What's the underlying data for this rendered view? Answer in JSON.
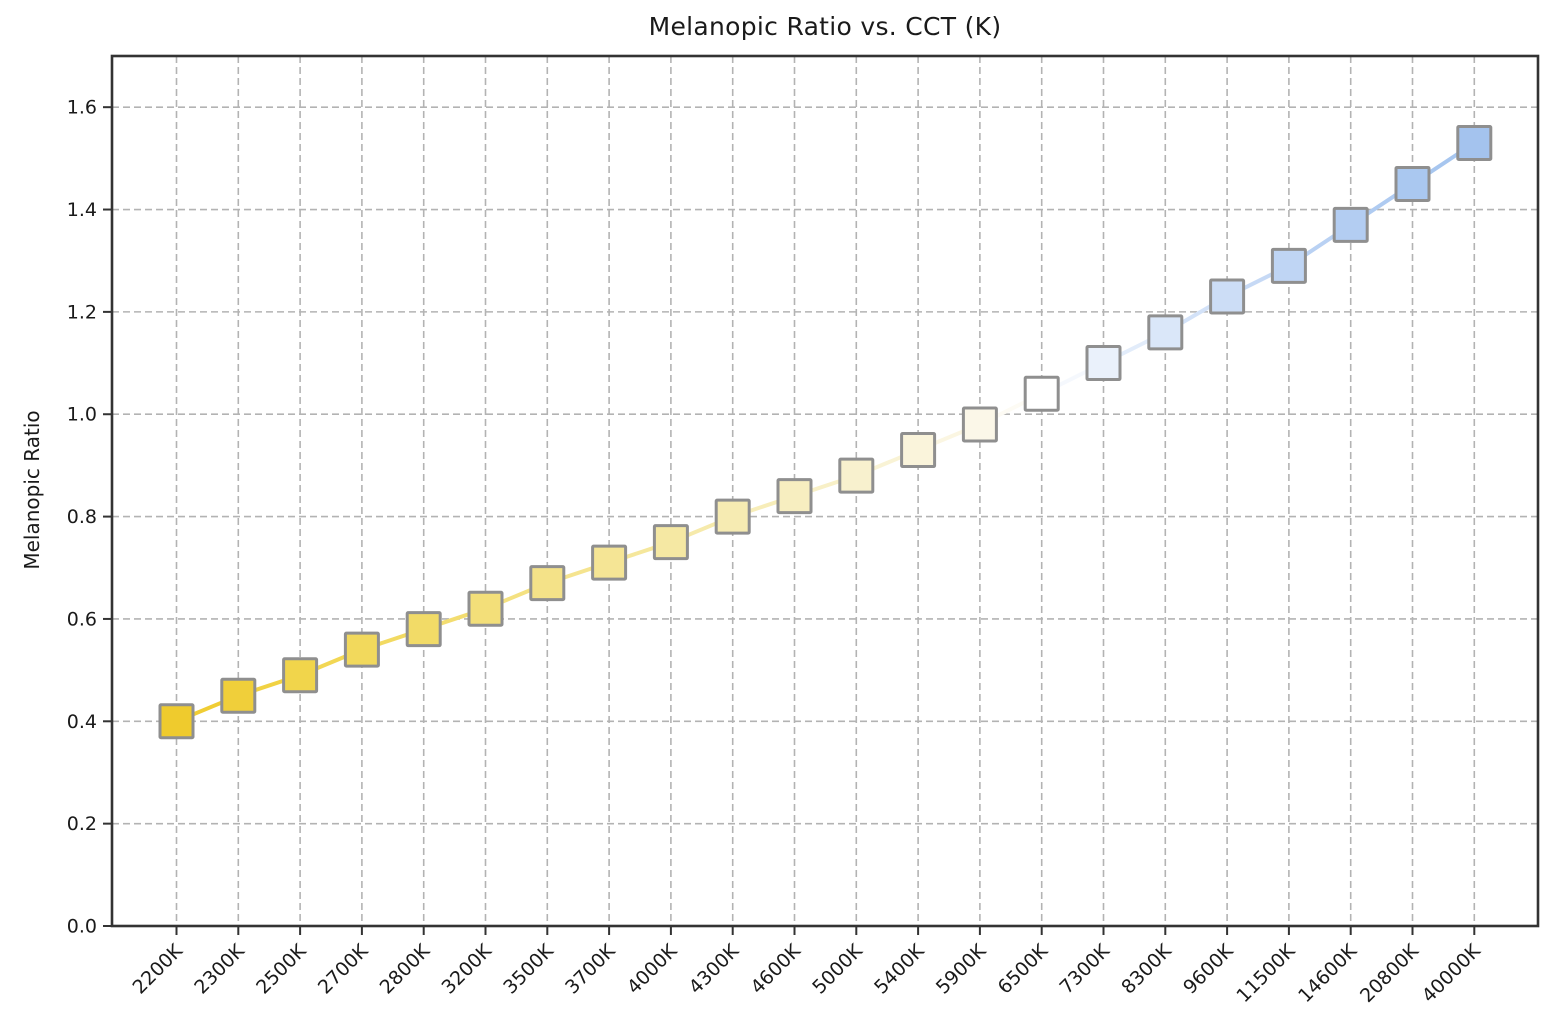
{
  "chart_data": {
    "type": "line",
    "title": "Melanopic Ratio vs. CCT (K)",
    "xlabel": "",
    "ylabel": "Melanopic Ratio",
    "categories": [
      "2200K",
      "2300K",
      "2500K",
      "2700K",
      "2800K",
      "3200K",
      "3500K",
      "3700K",
      "4000K",
      "4300K",
      "4600K",
      "5000K",
      "5400K",
      "5900K",
      "6500K",
      "7300K",
      "8300K",
      "9600K",
      "11500K",
      "14600K",
      "20800K",
      "40000K"
    ],
    "values": [
      0.4,
      0.45,
      0.49,
      0.54,
      0.58,
      0.62,
      0.67,
      0.71,
      0.75,
      0.8,
      0.84,
      0.88,
      0.93,
      0.98,
      1.04,
      1.1,
      1.16,
      1.23,
      1.29,
      1.37,
      1.45,
      1.53
    ],
    "point_colors": [
      "#efcb2d",
      "#f0cf3a",
      "#f1d54b",
      "#f2d95c",
      "#f2db67",
      "#f3df79",
      "#f4e288",
      "#f5e595",
      "#f5e8a3",
      "#f6ebb2",
      "#f7eec0",
      "#f8f1ce",
      "#faf4db",
      "#fbf7e8",
      "#ffffff",
      "#eaf1fb",
      "#dae7f9",
      "#ccddf6",
      "#bfd5f4",
      "#b3cdf2",
      "#aac8f0",
      "#a4c3ee"
    ],
    "marker": {
      "shape": "square",
      "size": 33,
      "edge_color": "#8f8f8f"
    },
    "line_width": 4,
    "ylim": [
      0,
      1.7
    ],
    "y_tick_labels": [
      "0.0",
      "0.2",
      "0.4",
      "0.6",
      "0.8",
      "1.0",
      "1.2",
      "1.4",
      "1.6"
    ],
    "grid": true,
    "grid_style": "dashed",
    "grid_color": "#b3b3b3",
    "spine_color": "#333333",
    "legend": null
  }
}
